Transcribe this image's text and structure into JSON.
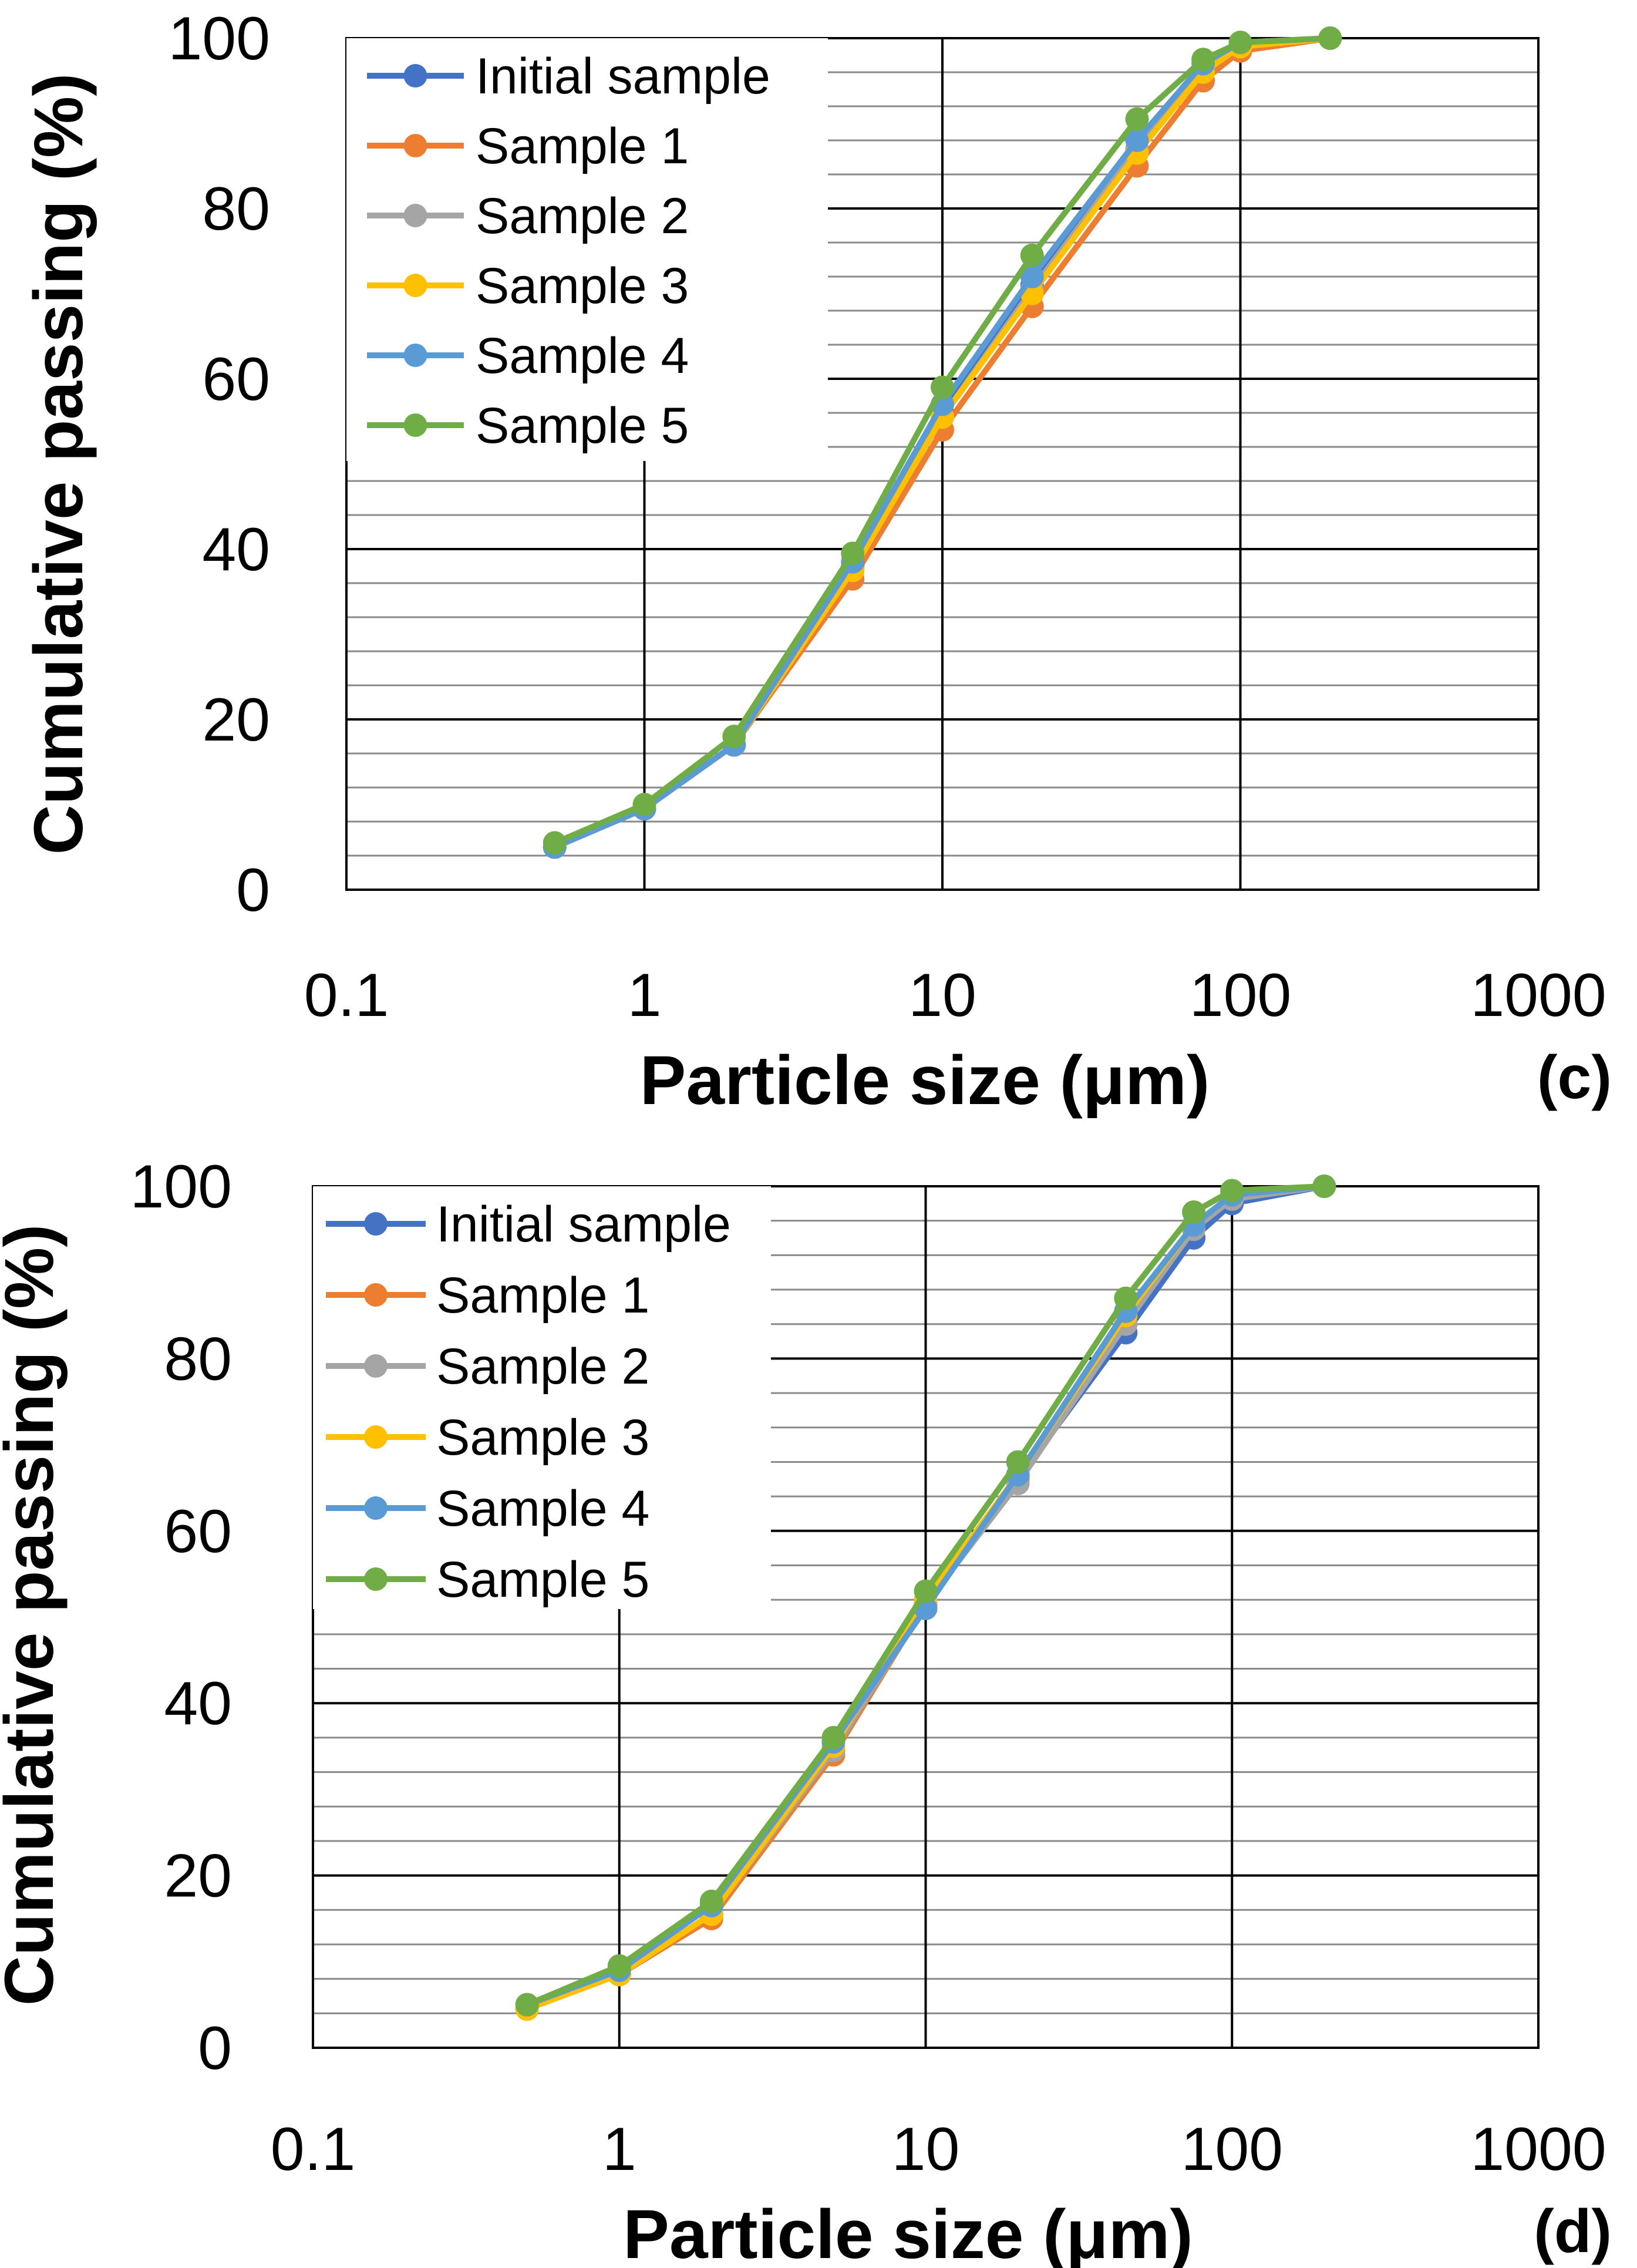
{
  "chart_data": [
    {
      "type": "line",
      "panel_label": "(c)",
      "xlabel": "Particle size (μm)",
      "ylabel": "Cumulative passing (%)",
      "xscale": "log",
      "xlim": [
        0.1,
        1000
      ],
      "ylim": [
        0,
        100
      ],
      "x_tick_labels": [
        "0.1",
        "1",
        "10",
        "100",
        "1000"
      ],
      "y_tick_labels": [
        "0",
        "20",
        "40",
        "60",
        "80",
        "100"
      ],
      "grid": true,
      "legend_position": "top-left",
      "x": [
        0.5,
        1,
        2,
        5,
        10,
        20,
        45,
        75,
        100,
        200
      ],
      "series": [
        {
          "name": "Initial sample",
          "color": "#4472C4",
          "values": [
            5,
            9.5,
            17,
            38,
            56,
            71,
            87,
            96.5,
            99,
            100
          ]
        },
        {
          "name": "Sample 1",
          "color": "#ED7D31",
          "values": [
            5,
            9.5,
            17,
            36.5,
            54,
            68.5,
            85,
            95,
            98.5,
            100
          ]
        },
        {
          "name": "Sample 2",
          "color": "#A5A5A5",
          "values": [
            5,
            9.5,
            17,
            37.5,
            55.5,
            70.5,
            87,
            96.5,
            99,
            100
          ]
        },
        {
          "name": "Sample 3",
          "color": "#FFC000",
          "values": [
            5,
            9.5,
            17,
            37.5,
            55.5,
            70,
            86.5,
            96,
            99,
            100
          ]
        },
        {
          "name": "Sample 4",
          "color": "#5B9BD5",
          "values": [
            5,
            9.5,
            17,
            38.5,
            57,
            72,
            88,
            97,
            99.5,
            100
          ]
        },
        {
          "name": "Sample 5",
          "color": "#70AD47",
          "values": [
            5.5,
            10,
            18,
            39.5,
            59,
            74.5,
            90.5,
            97.5,
            99.5,
            100
          ]
        }
      ]
    },
    {
      "type": "line",
      "panel_label": "(d)",
      "xlabel": "Particle size (μm)",
      "ylabel": "Cumulative passing (%)",
      "xscale": "log",
      "xlim": [
        0.1,
        1000
      ],
      "ylim": [
        0,
        100
      ],
      "x_tick_labels": [
        "0.1",
        "1",
        "10",
        "100",
        "1000"
      ],
      "y_tick_labels": [
        "0",
        "20",
        "40",
        "60",
        "80",
        "100"
      ],
      "grid": true,
      "legend_position": "top-left",
      "x": [
        0.5,
        1,
        2,
        5,
        10,
        20,
        45,
        75,
        100,
        200
      ],
      "series": [
        {
          "name": "Initial sample",
          "color": "#4472C4",
          "values": [
            4.5,
            8.5,
            15.5,
            34.5,
            51.5,
            66,
            83,
            94,
            98,
            100
          ]
        },
        {
          "name": "Sample 1",
          "color": "#ED7D31",
          "values": [
            4.5,
            8.5,
            15,
            34,
            51.5,
            66,
            84,
            95.5,
            99,
            100
          ]
        },
        {
          "name": "Sample 2",
          "color": "#A5A5A5",
          "values": [
            4.5,
            8.5,
            15.5,
            34.5,
            51.5,
            65.5,
            84,
            95,
            98.5,
            100
          ]
        },
        {
          "name": "Sample 3",
          "color": "#FFC000",
          "values": [
            4.5,
            8.5,
            15.5,
            35,
            52,
            66.5,
            85,
            95.5,
            99,
            100
          ]
        },
        {
          "name": "Sample 4",
          "color": "#5B9BD5",
          "values": [
            5,
            9,
            16.5,
            35.5,
            51,
            66.5,
            85.5,
            95.5,
            99,
            100
          ]
        },
        {
          "name": "Sample 5",
          "color": "#70AD47",
          "values": [
            5,
            9.5,
            17,
            36,
            53,
            68,
            87,
            97,
            99.5,
            100
          ]
        }
      ]
    }
  ]
}
